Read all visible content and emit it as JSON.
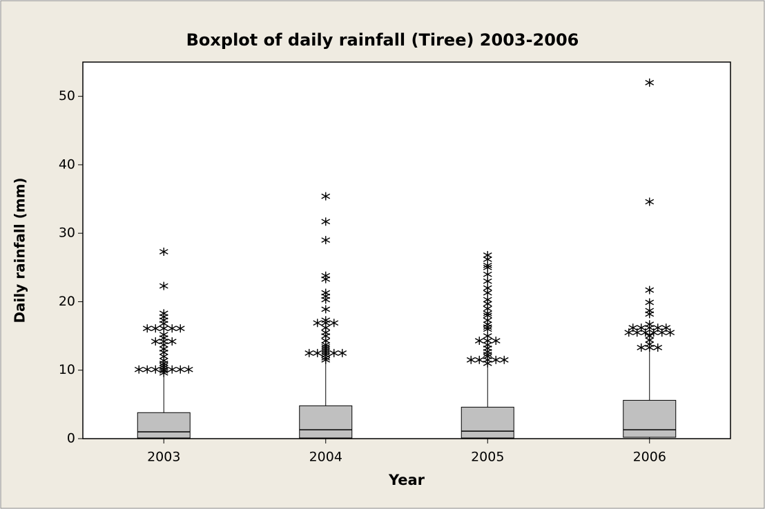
{
  "chart_data": {
    "type": "box",
    "title": "Boxplot of daily rainfall (Tiree) 2003-2006",
    "x_label": "Year",
    "y_label": "Daily rainfall (mm)",
    "categories": [
      "2003",
      "2004",
      "2005",
      "2006"
    ],
    "boxes": [
      {
        "whisker_low": 0,
        "q1": 0.1,
        "median": 1,
        "q3": 3.8,
        "whisker_high": 9.3,
        "outliers": [
          9.6,
          9.9,
          10.1,
          10.1,
          10.1,
          10.1,
          10.1,
          10.1,
          10.1,
          10.4,
          10.7,
          11,
          11.4,
          12,
          12.6,
          13.1,
          13.7,
          14.2,
          14.2,
          14.2,
          14.7,
          15.2,
          16.1,
          16.1,
          16.1,
          16.1,
          16.1,
          16.8,
          17.3,
          17.8,
          18.3,
          22.3,
          27.3
        ]
      },
      {
        "whisker_low": 0,
        "q1": 0.1,
        "median": 1.3,
        "q3": 4.8,
        "whisker_high": 11.2,
        "outliers": [
          11.5,
          11.8,
          12.2,
          12.5,
          12.5,
          12.5,
          12.5,
          12.5,
          12.8,
          13.1,
          13.4,
          13.7,
          14.3,
          15,
          15.5,
          16.2,
          16.9,
          16.9,
          16.9,
          17.3,
          18.9,
          20.3,
          20.8,
          21.3,
          23.3,
          23.8,
          29,
          31.7,
          35.4
        ]
      },
      {
        "whisker_low": 0,
        "q1": 0.1,
        "median": 1.1,
        "q3": 4.6,
        "whisker_high": 10.8,
        "outliers": [
          11,
          11.5,
          11.5,
          11.5,
          11.5,
          11.5,
          12,
          12.3,
          12.7,
          13.2,
          13.7,
          14.3,
          14.3,
          14.3,
          15,
          16,
          16.3,
          16.7,
          17.3,
          18,
          18.3,
          19,
          19.7,
          20.3,
          21.3,
          22,
          23,
          24,
          25,
          25.3,
          26.2,
          26.8
        ]
      },
      {
        "whisker_low": 0,
        "q1": 0.2,
        "median": 1.3,
        "q3": 5.6,
        "whisker_high": 13,
        "outliers": [
          13.3,
          13.3,
          13.3,
          13.8,
          14.4,
          15,
          15.5,
          15.5,
          15.5,
          15.5,
          15.5,
          15.5,
          16.2,
          16.2,
          16.2,
          16.2,
          16.2,
          16.7,
          18.2,
          18.7,
          19.9,
          21.7,
          34.6,
          52
        ]
      }
    ],
    "box_color": "#c0c0c0",
    "ylim": [
      0,
      55
    ],
    "yticks": [
      0,
      10,
      20,
      30,
      40,
      50
    ]
  }
}
